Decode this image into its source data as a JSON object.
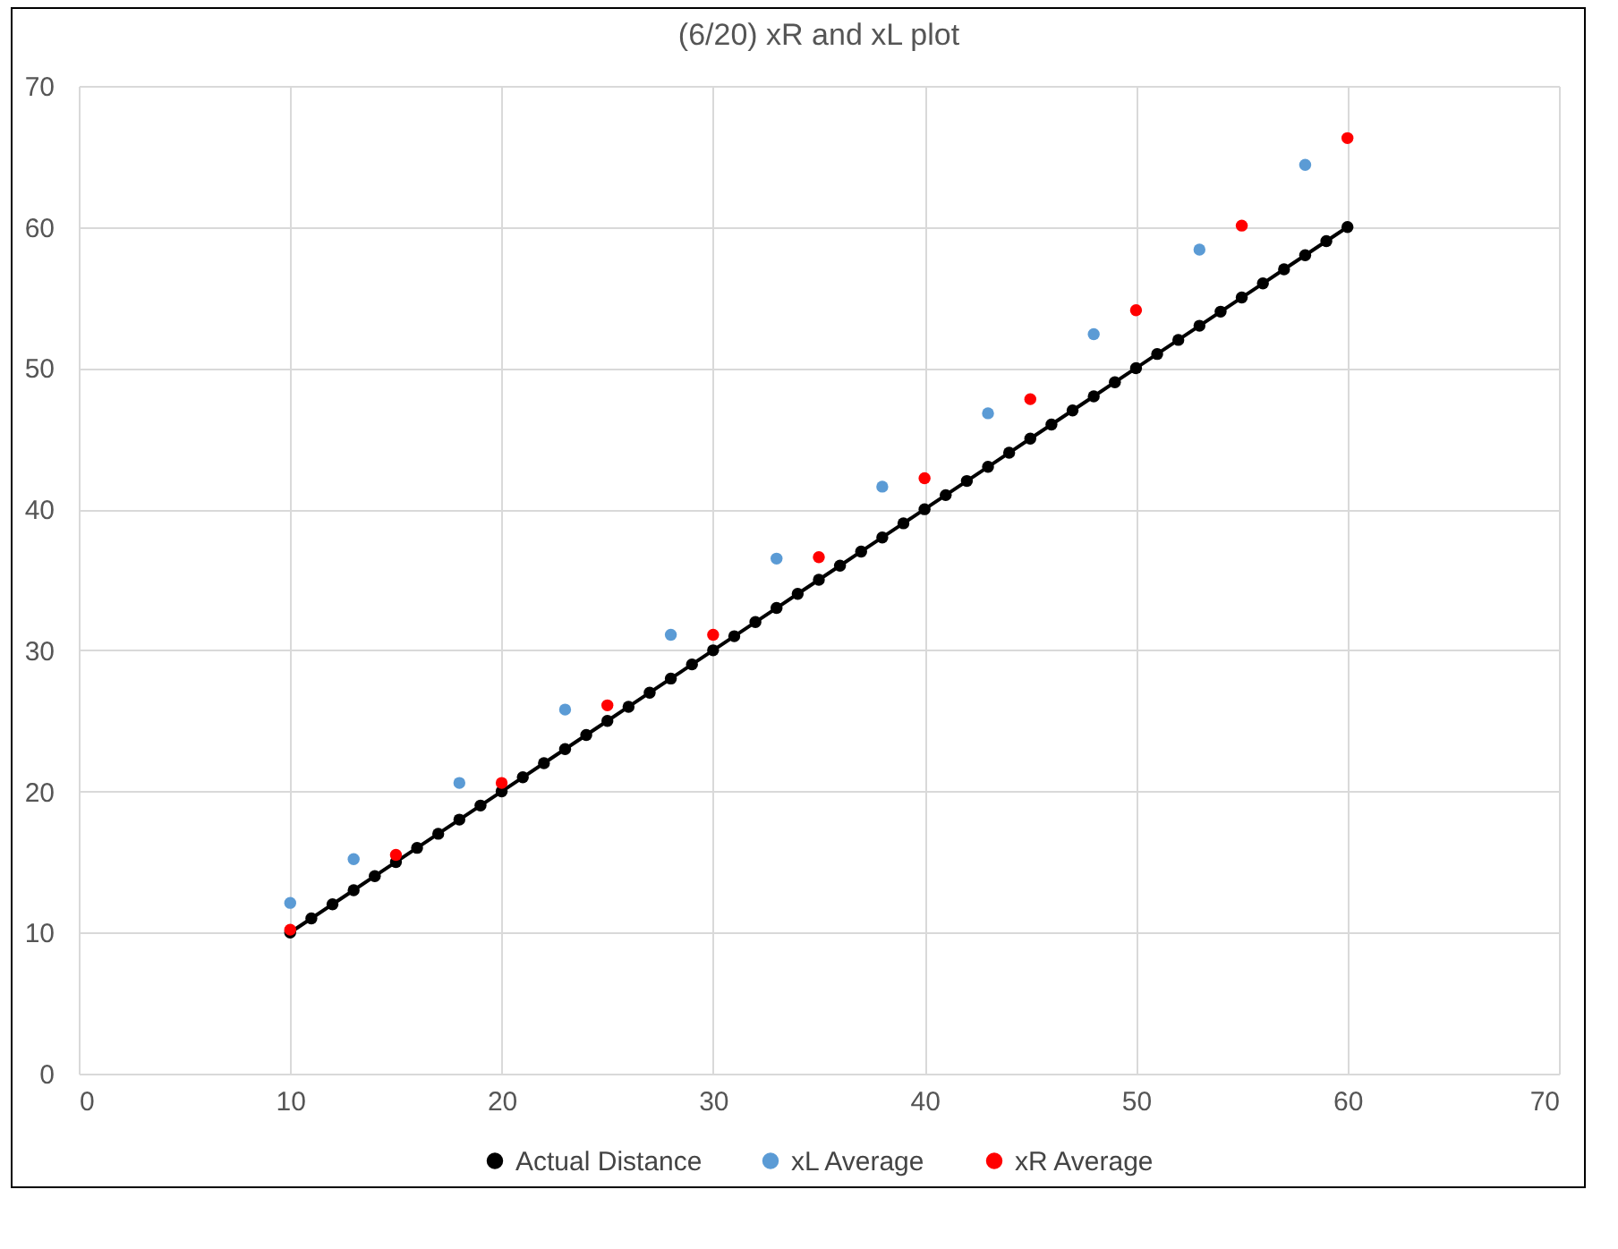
{
  "chart_data": {
    "type": "scatter",
    "title": "(6/20) xR and xL plot",
    "xlim": [
      0,
      70
    ],
    "xticks": [
      0,
      10,
      20,
      30,
      40,
      50,
      60,
      70
    ],
    "ylim": [
      0,
      70
    ],
    "yticks": [
      0,
      10,
      20,
      30,
      40,
      50,
      60,
      70
    ],
    "grid": true,
    "legend": "bottom",
    "marker": "circle",
    "series": [
      {
        "name": "Actual Distance",
        "type": "line",
        "color": "#000000",
        "x": [
          10,
          11,
          12,
          13,
          14,
          15,
          16,
          17,
          18,
          19,
          20,
          21,
          22,
          23,
          24,
          25,
          26,
          27,
          28,
          29,
          30,
          31,
          32,
          33,
          34,
          35,
          36,
          37,
          38,
          39,
          40,
          41,
          42,
          43,
          44,
          45,
          46,
          47,
          48,
          49,
          50,
          51,
          52,
          53,
          54,
          55,
          56,
          57,
          58,
          59,
          60
        ],
        "values": [
          10,
          11,
          12,
          13,
          14,
          15,
          16,
          17,
          18,
          19,
          20,
          21,
          22,
          23,
          24,
          25,
          26,
          27,
          28,
          29,
          30,
          31,
          32,
          33,
          34,
          35,
          36,
          37,
          38,
          39,
          40,
          41,
          42,
          43,
          44,
          45,
          46,
          47,
          48,
          49,
          50,
          51,
          52,
          53,
          54,
          55,
          56,
          57,
          58,
          59,
          60
        ]
      },
      {
        "name": "xL Average",
        "type": "scatter",
        "color": "#5b9bd5",
        "x": [
          10,
          13,
          18,
          23,
          28,
          33,
          38,
          43,
          48,
          53,
          58
        ],
        "values": [
          12.1,
          15.2,
          20.6,
          25.8,
          31.1,
          36.5,
          41.6,
          46.8,
          52.4,
          58.4,
          64.4
        ]
      },
      {
        "name": "xR Average",
        "type": "scatter",
        "color": "#ff0000",
        "x": [
          10,
          15,
          20,
          25,
          30,
          35,
          40,
          45,
          50,
          55,
          60
        ],
        "values": [
          10.2,
          15.5,
          20.6,
          26.1,
          31.1,
          36.6,
          42.2,
          47.8,
          54.1,
          60.1,
          66.3
        ]
      }
    ]
  }
}
